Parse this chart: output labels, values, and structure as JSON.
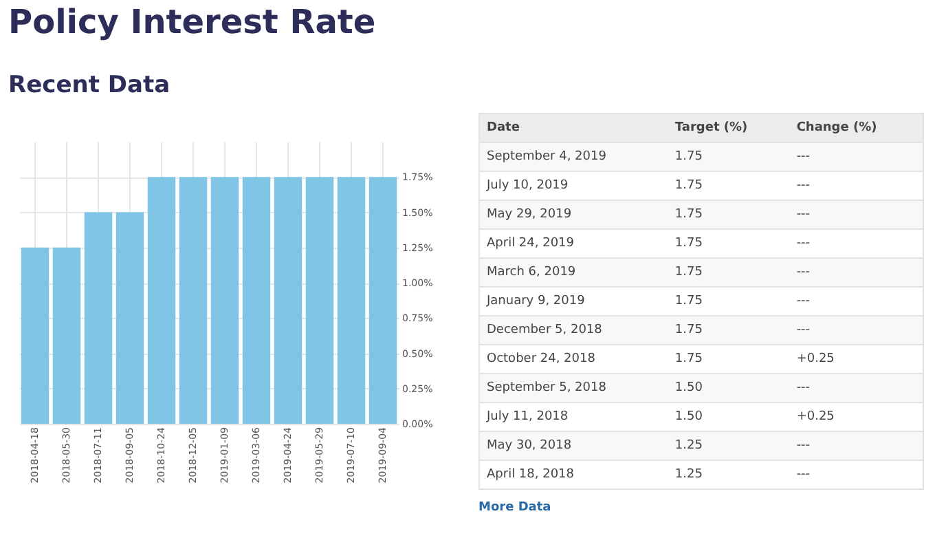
{
  "chart_data": [
    {
      "type": "bar",
      "title": "Policy Interest Rate",
      "subtitle": "Recent Data",
      "categories": [
        "2018-04-18",
        "2018-05-30",
        "2018-07-11",
        "2018-09-05",
        "2018-10-24",
        "2018-12-05",
        "2019-01-09",
        "2019-03-06",
        "2019-04-24",
        "2019-05-29",
        "2019-07-10",
        "2019-09-04"
      ],
      "values": [
        1.25,
        1.25,
        1.5,
        1.5,
        1.75,
        1.75,
        1.75,
        1.75,
        1.75,
        1.75,
        1.75,
        1.75
      ],
      "color": "#7fc4e4",
      "ylim": [
        0,
        2
      ],
      "yticks": [
        {
          "value": 0,
          "label": "0.00%"
        },
        {
          "value": 0.25,
          "label": "0.25%"
        },
        {
          "value": 0.5,
          "label": "0.50%"
        },
        {
          "value": 0.75,
          "label": "0.75%"
        },
        {
          "value": 1,
          "label": "1.00%"
        },
        {
          "value": 1.25,
          "label": "1.25%"
        },
        {
          "value": 1.5,
          "label": "1.50%"
        },
        {
          "value": 1.75,
          "label": "1.75%"
        }
      ],
      "grid": true
    },
    {
      "type": "other",
      "categories": [
        "Date",
        "Target (%)",
        "Change (%)"
      ],
      "annotations": [
        "September 4, 2019",
        "1.75",
        "---",
        "July 10, 2019",
        "1.75",
        "---",
        "May 29, 2019",
        "1.75",
        "---",
        "April 24, 2019",
        "1.75",
        "---",
        "March 6, 2019",
        "1.75",
        "---",
        "January 9, 2019",
        "1.75",
        "---",
        "December 5, 2018",
        "1.75",
        "---",
        "October 24, 2018",
        "1.75",
        "+0.25",
        "September 5, 2018",
        "1.50",
        "---",
        "July 11, 2018",
        "1.50",
        "+0.25",
        "May 30, 2018",
        "1.25",
        "---",
        "April 18, 2018",
        "1.25",
        "---",
        "More Data"
      ]
    }
  ]
}
